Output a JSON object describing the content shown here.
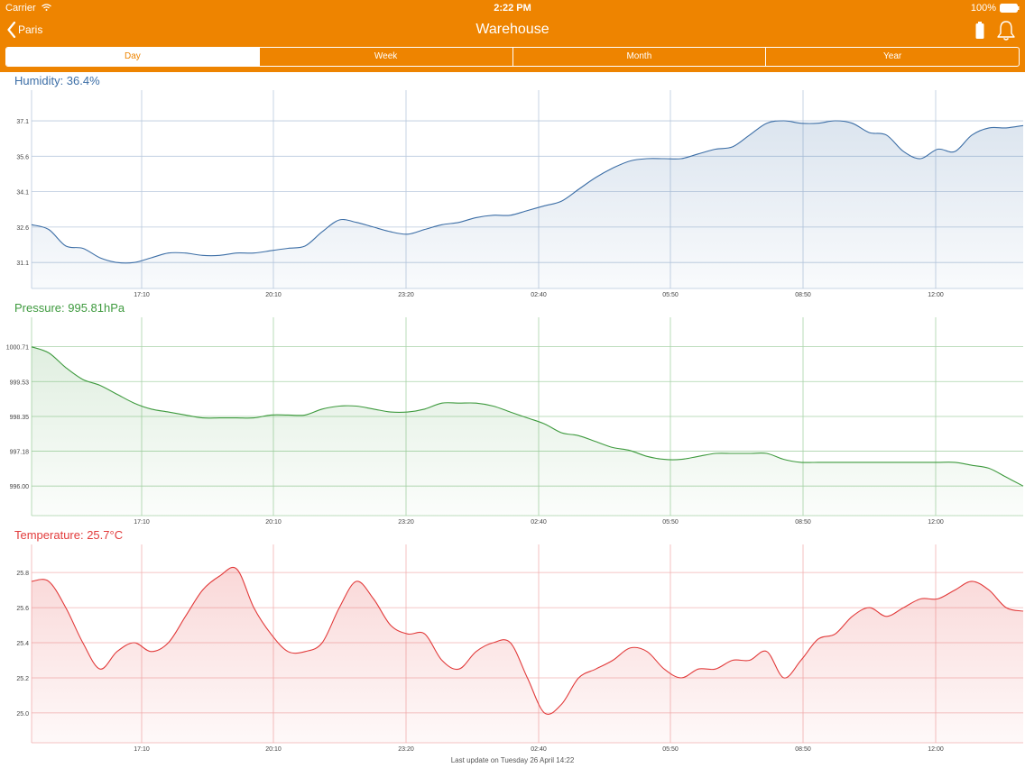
{
  "status_bar": {
    "carrier": "Carrier",
    "time": "2:22 PM",
    "battery": "100%"
  },
  "nav": {
    "back_label": "Paris",
    "title": "Warehouse"
  },
  "tabs": [
    {
      "label": "Day",
      "active": true
    },
    {
      "label": "Week",
      "active": false
    },
    {
      "label": "Month",
      "active": false
    },
    {
      "label": "Year",
      "active": false
    }
  ],
  "footer": {
    "last_update": "Last update on Tuesday 26 April 14:22"
  },
  "colors": {
    "accent": "#ee8400",
    "humidity": "#3c6ea6",
    "pressure": "#3e9a3e",
    "temperature": "#e23b3b"
  },
  "chart_data": [
    {
      "type": "area",
      "title": "Humidity: 36.4%",
      "x_tick_labels": [
        "17:10",
        "20:10",
        "23:20",
        "02:40",
        "05:50",
        "08:50",
        "12:00"
      ],
      "y_tick_labels": [
        "37.1",
        "35.6",
        "34.1",
        "32.6",
        "31.1"
      ],
      "ylim": [
        30.0,
        38.4
      ],
      "grid": true,
      "series": [
        {
          "values": [
            32.7,
            32.5,
            31.8,
            31.7,
            31.3,
            31.1,
            31.1,
            31.3,
            31.5,
            31.5,
            31.4,
            31.4,
            31.5,
            31.5,
            31.6,
            31.7,
            31.8,
            32.4,
            32.9,
            32.8,
            32.6,
            32.4,
            32.3,
            32.5,
            32.7,
            32.8,
            33.0,
            33.1,
            33.1,
            33.3,
            33.5,
            33.7,
            34.2,
            34.7,
            35.1,
            35.4,
            35.5,
            35.5,
            35.5,
            35.7,
            35.9,
            36.0,
            36.5,
            37.0,
            37.1,
            37.0,
            37.0,
            37.1,
            37.0,
            36.6,
            36.5,
            35.8,
            35.5,
            35.9,
            35.8,
            36.5,
            36.8,
            36.8,
            36.9
          ]
        }
      ]
    },
    {
      "type": "area",
      "title": "Pressure: 995.81hPa",
      "x_tick_labels": [
        "17:10",
        "20:10",
        "23:20",
        "02:40",
        "05:50",
        "08:50",
        "12:00"
      ],
      "y_tick_labels": [
        "1000.71",
        "999.53",
        "998.35",
        "997.18",
        "996.00"
      ],
      "ylim": [
        995.0,
        1001.7
      ],
      "grid": true,
      "series": [
        {
          "values": [
            1000.7,
            1000.5,
            1000.0,
            999.6,
            999.4,
            999.1,
            998.8,
            998.6,
            998.5,
            998.4,
            998.3,
            998.3,
            998.3,
            998.3,
            998.4,
            998.4,
            998.4,
            998.6,
            998.7,
            998.7,
            998.6,
            998.5,
            998.5,
            998.6,
            998.8,
            998.8,
            998.8,
            998.7,
            998.5,
            998.3,
            998.1,
            997.8,
            997.7,
            997.5,
            997.3,
            997.2,
            997.0,
            996.9,
            996.9,
            997.0,
            997.1,
            997.1,
            997.1,
            997.1,
            996.9,
            996.8,
            996.8,
            996.8,
            996.8,
            996.8,
            996.8,
            996.8,
            996.8,
            996.8,
            996.8,
            996.7,
            996.6,
            996.3,
            996.0
          ]
        }
      ]
    },
    {
      "type": "area",
      "title": "Temperature: 25.7°C",
      "x_tick_labels": [
        "17:10",
        "20:10",
        "23:20",
        "02:40",
        "05:50",
        "08:50",
        "12:00"
      ],
      "y_tick_labels": [
        "25.8",
        "25.6",
        "25.4",
        "25.2",
        "25.0"
      ],
      "ylim": [
        24.83,
        25.96
      ],
      "grid": true,
      "series": [
        {
          "values": [
            25.75,
            25.75,
            25.6,
            25.4,
            25.25,
            25.35,
            25.4,
            25.35,
            25.4,
            25.55,
            25.7,
            25.78,
            25.82,
            25.6,
            25.45,
            25.35,
            25.35,
            25.4,
            25.6,
            25.75,
            25.65,
            25.5,
            25.45,
            25.45,
            25.3,
            25.25,
            25.35,
            25.4,
            25.4,
            25.2,
            25.0,
            25.05,
            25.2,
            25.25,
            25.3,
            25.37,
            25.35,
            25.25,
            25.2,
            25.25,
            25.25,
            25.3,
            25.3,
            25.35,
            25.2,
            25.3,
            25.42,
            25.45,
            25.55,
            25.6,
            25.55,
            25.6,
            25.65,
            25.65,
            25.7,
            25.75,
            25.7,
            25.6,
            25.58
          ]
        }
      ]
    }
  ]
}
